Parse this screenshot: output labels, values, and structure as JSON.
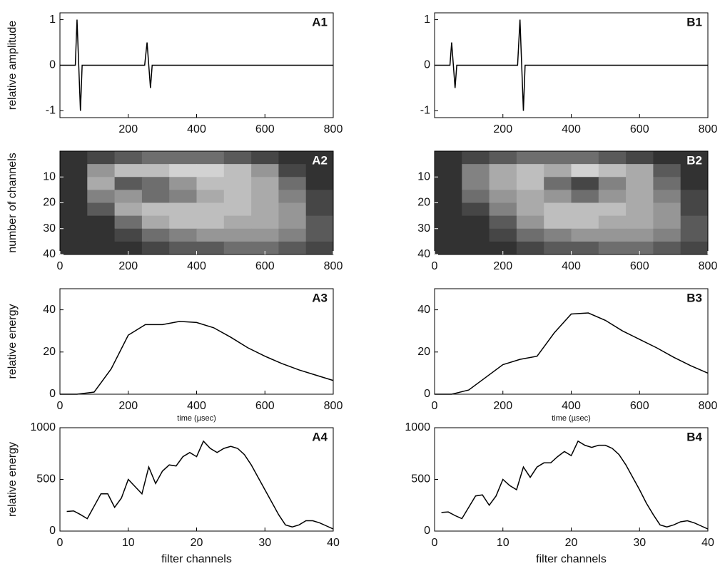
{
  "chart_data": [
    {
      "type": "line",
      "panel_label": "A1",
      "ylabel": "relative amplitude",
      "color": "#000000",
      "x": [
        0,
        45,
        50,
        55,
        60,
        65,
        70,
        248,
        255,
        260,
        265,
        270,
        800
      ],
      "values": [
        0,
        0,
        1,
        0,
        -1,
        0,
        0,
        0,
        0.5,
        0,
        -0.5,
        0,
        0
      ],
      "xlim": [
        0,
        800
      ],
      "ylim": [
        -1.15,
        1.15
      ],
      "xticks": [
        200,
        400,
        600,
        800
      ],
      "yticks": [
        -1,
        0,
        1
      ]
    },
    {
      "type": "line",
      "panel_label": "B1",
      "color": "#000000",
      "x": [
        0,
        45,
        50,
        55,
        60,
        65,
        70,
        243,
        250,
        255,
        260,
        265,
        800
      ],
      "values": [
        0,
        0,
        0.5,
        0,
        -0.5,
        0,
        0,
        0,
        1,
        0,
        -1,
        0,
        0
      ],
      "xlim": [
        0,
        800
      ],
      "ylim": [
        -1.15,
        1.15
      ],
      "xticks": [
        200,
        400,
        600,
        800
      ],
      "yticks": [
        -1,
        0,
        1
      ]
    },
    {
      "type": "heatmap",
      "panel_label": "A2",
      "ylabel": "number of channels",
      "y_reversed": true,
      "z": [
        [
          0.1,
          0.2,
          0.3,
          0.4,
          0.4,
          0.4,
          0.3,
          0.2,
          0.1,
          0.1
        ],
        [
          0.1,
          0.6,
          0.8,
          0.8,
          0.9,
          0.9,
          0.8,
          0.6,
          0.2,
          0.1
        ],
        [
          0.1,
          0.7,
          0.3,
          0.4,
          0.6,
          0.8,
          0.8,
          0.7,
          0.4,
          0.1
        ],
        [
          0.1,
          0.5,
          0.6,
          0.4,
          0.5,
          0.7,
          0.8,
          0.7,
          0.5,
          0.2
        ],
        [
          0.1,
          0.3,
          0.7,
          0.8,
          0.8,
          0.8,
          0.8,
          0.7,
          0.6,
          0.2
        ],
        [
          0.1,
          0.1,
          0.4,
          0.7,
          0.8,
          0.8,
          0.7,
          0.7,
          0.6,
          0.3
        ],
        [
          0.1,
          0.1,
          0.2,
          0.4,
          0.5,
          0.6,
          0.6,
          0.6,
          0.5,
          0.3
        ],
        [
          0.1,
          0.1,
          0.1,
          0.2,
          0.3,
          0.3,
          0.4,
          0.4,
          0.3,
          0.2
        ]
      ],
      "xlim": [
        0,
        800
      ],
      "ylim": [
        0,
        40
      ],
      "xticks": [
        0,
        200,
        400,
        600,
        800
      ],
      "yticks": [
        10,
        20,
        30,
        40
      ]
    },
    {
      "type": "heatmap",
      "panel_label": "B2",
      "y_reversed": true,
      "z": [
        [
          0.1,
          0.2,
          0.3,
          0.4,
          0.4,
          0.4,
          0.3,
          0.2,
          0.1,
          0.1
        ],
        [
          0.1,
          0.5,
          0.7,
          0.8,
          0.7,
          0.9,
          0.8,
          0.7,
          0.3,
          0.1
        ],
        [
          0.1,
          0.5,
          0.7,
          0.8,
          0.4,
          0.2,
          0.5,
          0.7,
          0.4,
          0.1
        ],
        [
          0.1,
          0.4,
          0.6,
          0.7,
          0.6,
          0.4,
          0.6,
          0.7,
          0.5,
          0.2
        ],
        [
          0.1,
          0.2,
          0.5,
          0.7,
          0.8,
          0.8,
          0.8,
          0.7,
          0.6,
          0.2
        ],
        [
          0.1,
          0.1,
          0.3,
          0.6,
          0.8,
          0.8,
          0.7,
          0.7,
          0.6,
          0.3
        ],
        [
          0.1,
          0.1,
          0.2,
          0.4,
          0.5,
          0.6,
          0.6,
          0.6,
          0.5,
          0.3
        ],
        [
          0.1,
          0.1,
          0.1,
          0.2,
          0.3,
          0.3,
          0.4,
          0.4,
          0.3,
          0.2
        ]
      ],
      "xlim": [
        0,
        800
      ],
      "ylim": [
        0,
        40
      ],
      "xticks": [
        0,
        200,
        400,
        600,
        800
      ],
      "yticks": [
        10,
        20,
        30,
        40
      ]
    },
    {
      "type": "line",
      "panel_label": "A3",
      "ylabel": "relative energy",
      "xlabel": "time (µsec)",
      "color": "#000000",
      "x": [
        0,
        50,
        100,
        150,
        200,
        250,
        300,
        350,
        400,
        450,
        500,
        550,
        600,
        650,
        700,
        750,
        800
      ],
      "values": [
        0,
        0,
        1,
        12,
        28,
        33,
        33,
        34.5,
        34,
        31.5,
        27,
        22,
        18,
        14.5,
        11.5,
        9,
        6.5
      ],
      "xlim": [
        0,
        800
      ],
      "ylim": [
        0,
        50
      ],
      "xticks": [
        0,
        200,
        400,
        600,
        800
      ],
      "yticks": [
        0,
        20,
        40
      ]
    },
    {
      "type": "line",
      "panel_label": "B3",
      "xlabel": "time (µsec)",
      "color": "#000000",
      "x": [
        0,
        50,
        100,
        150,
        200,
        250,
        300,
        350,
        400,
        450,
        500,
        550,
        600,
        650,
        700,
        750,
        800
      ],
      "values": [
        0,
        0,
        2,
        8,
        14,
        16.5,
        18,
        29,
        38,
        38.5,
        35,
        30,
        26,
        22,
        17.5,
        13.5,
        10
      ],
      "xlim": [
        0,
        800
      ],
      "ylim": [
        0,
        50
      ],
      "xticks": [
        0,
        200,
        400,
        600,
        800
      ],
      "yticks": [
        0,
        20,
        40
      ]
    },
    {
      "type": "line",
      "panel_label": "A4",
      "ylabel": "relative energy",
      "xlabel": "filter channels",
      "color": "#000000",
      "x": [
        1,
        2,
        3,
        4,
        5,
        6,
        7,
        8,
        9,
        10,
        11,
        12,
        13,
        14,
        15,
        16,
        17,
        18,
        19,
        20,
        21,
        22,
        23,
        24,
        25,
        26,
        27,
        28,
        29,
        30,
        31,
        32,
        33,
        34,
        35,
        36,
        37,
        38,
        39,
        40
      ],
      "values": [
        190,
        195,
        160,
        120,
        240,
        360,
        360,
        230,
        320,
        500,
        430,
        360,
        620,
        460,
        580,
        640,
        630,
        720,
        760,
        720,
        870,
        800,
        760,
        800,
        820,
        800,
        740,
        640,
        520,
        400,
        280,
        160,
        60,
        40,
        60,
        100,
        100,
        80,
        50,
        20
      ],
      "xlim": [
        0,
        40
      ],
      "ylim": [
        0,
        1000
      ],
      "xticks": [
        0,
        10,
        20,
        30,
        40
      ],
      "yticks": [
        0,
        500,
        1000
      ]
    },
    {
      "type": "line",
      "panel_label": "B4",
      "xlabel": "filter channels",
      "color": "#000000",
      "x": [
        1,
        2,
        3,
        4,
        5,
        6,
        7,
        8,
        9,
        10,
        11,
        12,
        13,
        14,
        15,
        16,
        17,
        18,
        19,
        20,
        21,
        22,
        23,
        24,
        25,
        26,
        27,
        28,
        29,
        30,
        31,
        32,
        33,
        34,
        35,
        36,
        37,
        38,
        39,
        40
      ],
      "values": [
        180,
        185,
        150,
        120,
        230,
        340,
        350,
        250,
        340,
        500,
        440,
        400,
        620,
        520,
        620,
        660,
        660,
        720,
        770,
        730,
        870,
        830,
        810,
        830,
        830,
        800,
        740,
        640,
        520,
        400,
        270,
        160,
        60,
        40,
        60,
        90,
        100,
        80,
        50,
        20
      ],
      "xlim": [
        0,
        40
      ],
      "ylim": [
        0,
        1000
      ],
      "xticks": [
        0,
        10,
        20,
        30,
        40
      ],
      "yticks": [
        0,
        500,
        1000
      ]
    }
  ]
}
